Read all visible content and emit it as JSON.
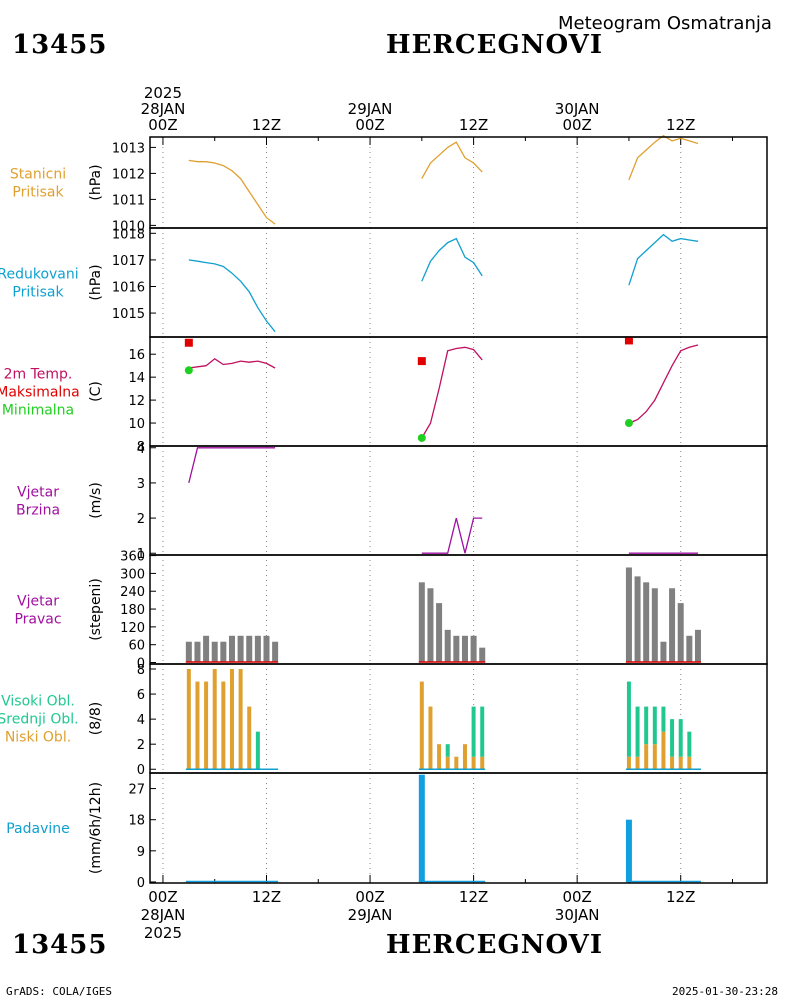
{
  "station_id": "13455",
  "station_name": "HERCEGNOVI",
  "product_title": "Meteogram Osmatranja",
  "footer_left": "GrADS: COLA/IGES",
  "footer_right": "2025-01-30-23:28",
  "colors": {
    "orange": "#e0a030",
    "cyan": "#10a0d0",
    "magenta": "#c01060",
    "red": "#e00000",
    "green": "#20d020",
    "purple": "#a010a0",
    "gray": "#808080",
    "teal": "#20c890",
    "blue": "#10a0e0"
  },
  "time_axis": {
    "top_labels": [
      {
        "h": 0,
        "lines": [
          "2025",
          "28JAN",
          "00Z"
        ]
      },
      {
        "h": 12,
        "lines": [
          "12Z"
        ]
      },
      {
        "h": 24,
        "lines": [
          "29JAN",
          "00Z"
        ]
      },
      {
        "h": 36,
        "lines": [
          "12Z"
        ]
      },
      {
        "h": 48,
        "lines": [
          "30JAN",
          "00Z"
        ]
      },
      {
        "h": 60,
        "lines": [
          "12Z"
        ]
      }
    ],
    "bottom_labels": [
      {
        "h": 0,
        "lines": [
          "00Z",
          "28JAN",
          "2025"
        ]
      },
      {
        "h": 12,
        "lines": [
          "12Z"
        ]
      },
      {
        "h": 24,
        "lines": [
          "00Z",
          "29JAN"
        ]
      },
      {
        "h": 36,
        "lines": [
          "12Z"
        ]
      },
      {
        "h": 48,
        "lines": [
          "00Z",
          "30JAN"
        ]
      },
      {
        "h": 60,
        "lines": [
          "12Z"
        ]
      }
    ],
    "range_hours": [
      -1.5,
      70
    ]
  },
  "chart_data": [
    {
      "type": "line",
      "title_lines": [
        "Stanicni",
        "Pritisak"
      ],
      "title_color": "orange",
      "ylabel": "(hPa)",
      "ylim": [
        1009.9,
        1013.4
      ],
      "yticks": [
        1010,
        1011,
        1012,
        1013
      ],
      "series": [
        {
          "color": "orange",
          "segments": [
            {
              "x": [
                3,
                4,
                5,
                6,
                7,
                8,
                9,
                10,
                11,
                12,
                13
              ],
              "y": [
                1012.5,
                1012.45,
                1012.45,
                1012.4,
                1012.3,
                1012.1,
                1011.8,
                1011.3,
                1010.8,
                1010.3,
                1010.05
              ]
            },
            {
              "x": [
                30,
                31,
                32,
                33,
                34,
                35,
                36,
                37
              ],
              "y": [
                1011.8,
                1012.4,
                1012.7,
                1013.0,
                1013.2,
                1012.6,
                1012.4,
                1012.05
              ]
            },
            {
              "x": [
                54,
                55,
                56,
                57,
                58,
                59,
                60,
                61,
                62
              ],
              "y": [
                1011.75,
                1012.6,
                1012.9,
                1013.2,
                1013.45,
                1013.25,
                1013.35,
                1013.25,
                1013.15
              ]
            }
          ]
        }
      ]
    },
    {
      "type": "line",
      "title_lines": [
        "Redukovani",
        "Pritisak"
      ],
      "title_color": "cyan",
      "ylabel": "(hPa)",
      "ylim": [
        1014.1,
        1018.2
      ],
      "yticks": [
        1015,
        1016,
        1017,
        1018
      ],
      "series": [
        {
          "color": "cyan",
          "segments": [
            {
              "x": [
                3,
                4,
                5,
                6,
                7,
                8,
                9,
                10,
                11,
                12,
                13
              ],
              "y": [
                1017.0,
                1016.95,
                1016.9,
                1016.85,
                1016.75,
                1016.5,
                1016.2,
                1015.8,
                1015.2,
                1014.7,
                1014.3
              ]
            },
            {
              "x": [
                30,
                31,
                32,
                33,
                34,
                35,
                36,
                37
              ],
              "y": [
                1016.2,
                1016.95,
                1017.35,
                1017.65,
                1017.8,
                1017.1,
                1016.9,
                1016.4
              ]
            },
            {
              "x": [
                54,
                55,
                56,
                57,
                58,
                59,
                60,
                61,
                62
              ],
              "y": [
                1016.05,
                1017.05,
                1017.35,
                1017.65,
                1017.95,
                1017.7,
                1017.8,
                1017.75,
                1017.7
              ]
            }
          ]
        }
      ]
    },
    {
      "type": "line",
      "title_lines": [
        "2m Temp.",
        "Maksimalna",
        "Minimalna"
      ],
      "title_line_colors": [
        "magenta",
        "red",
        "green"
      ],
      "ylabel": "(C)",
      "ylim": [
        8,
        17.5
      ],
      "yticks": [
        8,
        10,
        12,
        14,
        16
      ],
      "series": [
        {
          "color": "magenta",
          "segments": [
            {
              "x": [
                3,
                4,
                5,
                6,
                7,
                8,
                9,
                10,
                11,
                12,
                13
              ],
              "y": [
                14.8,
                14.9,
                15.0,
                15.6,
                15.1,
                15.2,
                15.4,
                15.3,
                15.4,
                15.2,
                14.8
              ]
            },
            {
              "x": [
                30,
                31,
                32,
                33,
                34,
                35,
                36,
                37
              ],
              "y": [
                8.7,
                10.0,
                13.0,
                16.3,
                16.5,
                16.6,
                16.4,
                15.5
              ]
            },
            {
              "x": [
                54,
                55,
                56,
                57,
                58,
                59,
                60,
                61,
                62
              ],
              "y": [
                10.0,
                10.3,
                11.0,
                12.0,
                13.5,
                15.0,
                16.3,
                16.6,
                16.8
              ]
            }
          ]
        }
      ],
      "markers": [
        {
          "kind": "square",
          "color": "red",
          "x": [
            3,
            30,
            54
          ],
          "y": [
            17.0,
            15.4,
            17.2
          ]
        },
        {
          "kind": "circle",
          "color": "green",
          "x": [
            3,
            30,
            54
          ],
          "y": [
            14.6,
            8.7,
            10.0
          ]
        }
      ]
    },
    {
      "type": "line",
      "title_lines": [
        "Vjetar",
        "Brzina"
      ],
      "title_color": "purple",
      "ylabel": "(m/s)",
      "ylim": [
        0.95,
        4.05
      ],
      "yticks": [
        1,
        2,
        3,
        4
      ],
      "series": [
        {
          "color": "purple",
          "segments": [
            {
              "x": [
                3,
                4,
                5,
                6,
                7,
                8,
                9,
                10,
                11,
                12,
                13
              ],
              "y": [
                3,
                4,
                4,
                4,
                4,
                4,
                4,
                4,
                4,
                4,
                4
              ]
            },
            {
              "x": [
                30,
                31,
                32,
                33,
                34,
                35,
                36,
                37
              ],
              "y": [
                1,
                1,
                1,
                1,
                2,
                1,
                2,
                2
              ]
            },
            {
              "x": [
                54,
                55,
                56,
                57,
                58,
                59,
                60,
                61,
                62
              ],
              "y": [
                1,
                1,
                1,
                1,
                1,
                1,
                1,
                1,
                1
              ]
            }
          ]
        }
      ]
    },
    {
      "type": "bar",
      "title_lines": [
        "Vjetar",
        "Pravac"
      ],
      "title_color": "purple",
      "ylabel": "(stepeni)",
      "ylim": [
        -5,
        362
      ],
      "yticks": [
        0,
        60,
        120,
        180,
        240,
        300,
        360
      ],
      "bar_color": "gray",
      "baseline_color": "red",
      "x": [
        3,
        4,
        5,
        6,
        7,
        8,
        9,
        10,
        11,
        12,
        13,
        30,
        31,
        32,
        33,
        34,
        35,
        36,
        37,
        54,
        55,
        56,
        57,
        58,
        59,
        60,
        61,
        62
      ],
      "values": [
        70,
        70,
        90,
        70,
        70,
        90,
        90,
        90,
        90,
        90,
        70,
        270,
        250,
        200,
        110,
        90,
        90,
        90,
        50,
        320,
        290,
        270,
        250,
        70,
        250,
        200,
        90,
        110
      ]
    },
    {
      "type": "bar",
      "title_lines": [
        "Visoki Obl.",
        "Srednji Obl.",
        "Niski Obl."
      ],
      "title_line_colors": [
        "teal",
        "teal",
        "orange"
      ],
      "ylabel": "(8/8)",
      "ylim": [
        -0.3,
        8.4
      ],
      "yticks": [
        0,
        2,
        4,
        6,
        8
      ],
      "stacked": true,
      "x": [
        3,
        4,
        5,
        6,
        7,
        8,
        9,
        10,
        11,
        12,
        13,
        30,
        31,
        32,
        33,
        34,
        35,
        36,
        37,
        54,
        55,
        56,
        57,
        58,
        59,
        60,
        61,
        62
      ],
      "series": [
        {
          "name": "Niski Obl.",
          "color": "orange",
          "values": [
            8,
            7,
            7,
            8,
            7,
            8,
            8,
            5,
            0,
            0,
            0,
            7,
            5,
            2,
            1,
            1,
            2,
            1,
            1,
            1,
            1,
            2,
            2,
            3,
            1,
            1,
            1,
            0
          ]
        },
        {
          "name": "Visoki Obl.",
          "color": "teal",
          "values": [
            0,
            0,
            0,
            0,
            0,
            0,
            0,
            0,
            3,
            0,
            0,
            0,
            0,
            0,
            1,
            0,
            0,
            4,
            4,
            6,
            4,
            3,
            3,
            2,
            3,
            3,
            2,
            0
          ]
        }
      ],
      "totals": [
        8,
        7,
        7,
        8,
        7,
        8,
        8,
        5,
        3,
        0,
        0,
        7,
        5,
        2,
        2,
        1,
        2,
        5,
        5,
        7,
        5,
        5,
        5,
        5,
        4,
        4,
        3,
        0
      ]
    },
    {
      "type": "bar",
      "title_lines": [
        "Padavine"
      ],
      "title_color": "cyan",
      "ylabel": "(mm/6h/12h)",
      "ylim": [
        -0.3,
        31.5
      ],
      "yticks": [
        0,
        9,
        18,
        27
      ],
      "bar_color": "blue",
      "baseline_color": "blue",
      "x": [
        30,
        54
      ],
      "values": [
        31,
        18
      ]
    }
  ]
}
